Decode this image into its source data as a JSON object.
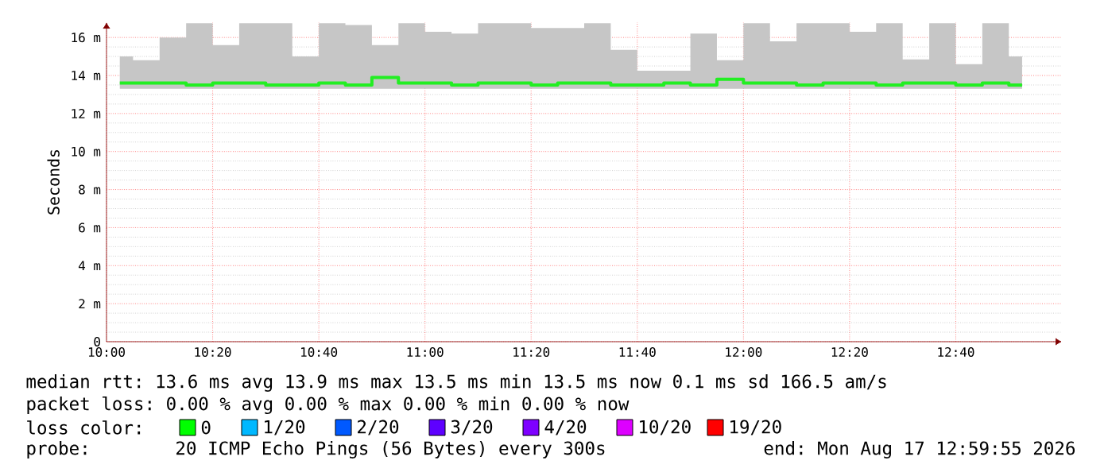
{
  "chart_data": {
    "type": "step",
    "ylabel": "Seconds",
    "x": [
      10.0417,
      10.125,
      10.2083,
      10.2917,
      10.375,
      10.4583,
      10.5417,
      10.625,
      10.7083,
      10.7917,
      10.875,
      10.9583,
      11.0417,
      11.125,
      11.2083,
      11.2917,
      11.375,
      11.4583,
      11.5417,
      11.625,
      11.7083,
      11.7917,
      11.875,
      11.9583,
      12.0417,
      12.125,
      12.2083,
      12.2917,
      12.375,
      12.4583,
      12.5417,
      12.625,
      12.7083,
      12.7917,
      12.875
    ],
    "series": [
      {
        "color": "#22ee22",
        "values": [
          13.6,
          13.6,
          13.6,
          13.5,
          13.6,
          13.6,
          13.5,
          13.5,
          13.6,
          13.5,
          13.9,
          13.6,
          13.6,
          13.5,
          13.6,
          13.6,
          13.5,
          13.6,
          13.6,
          13.5,
          13.5,
          13.6,
          13.5,
          13.8,
          13.6,
          13.6,
          13.5,
          13.6,
          13.6,
          13.5,
          13.6,
          13.6,
          13.5,
          13.6,
          13.5
        ],
        "lower": [
          13.3,
          13.3,
          13.3,
          13.3,
          13.3,
          13.3,
          13.3,
          13.3,
          13.3,
          13.3,
          13.3,
          13.3,
          13.3,
          13.3,
          13.3,
          13.3,
          13.3,
          13.3,
          13.3,
          13.3,
          13.3,
          13.3,
          13.3,
          13.3,
          13.3,
          13.3,
          13.3,
          13.3,
          13.3,
          13.3,
          13.3,
          13.3,
          13.3,
          13.3,
          13.3
        ],
        "upper": [
          15.0,
          14.8,
          16.0,
          16.75,
          15.6,
          16.75,
          16.75,
          15.0,
          16.75,
          16.65,
          15.6,
          16.75,
          16.3,
          16.2,
          16.75,
          16.75,
          16.5,
          16.5,
          16.75,
          15.35,
          14.25,
          14.25,
          16.2,
          14.8,
          16.75,
          15.8,
          16.75,
          16.75,
          16.3,
          16.75,
          14.85,
          16.75,
          14.6,
          16.75,
          15.0
        ]
      }
    ],
    "xlim": [
      10,
      13
    ],
    "ylim": [
      0,
      16.8
    ],
    "xticks": [
      {
        "value": 10,
        "label": "10:00"
      },
      {
        "value": 10.3333,
        "label": "10:20"
      },
      {
        "value": 10.6667,
        "label": "10:40"
      },
      {
        "value": 11,
        "label": "11:00"
      },
      {
        "value": 11.3333,
        "label": "11:20"
      },
      {
        "value": 11.6667,
        "label": "11:40"
      },
      {
        "value": 12,
        "label": "12:00"
      },
      {
        "value": 12.3333,
        "label": "12:20"
      },
      {
        "value": 12.6667,
        "label": "12:40"
      }
    ],
    "yticks": [
      0,
      {
        "value": 2,
        "label": "2 m"
      },
      {
        "value": 4,
        "label": "4 m"
      },
      {
        "value": 6,
        "label": "6 m"
      },
      {
        "value": 8,
        "label": "8 m"
      },
      {
        "value": 10,
        "label": "10 m"
      },
      {
        "value": 12,
        "label": "12 m"
      },
      {
        "value": 14,
        "label": "14 m"
      },
      {
        "value": 16,
        "label": "16 m"
      }
    ],
    "grid": true,
    "annotations": [
      "median rtt: 13.6 ms avg 13.9 ms max 13.5 ms min 13.5 ms now 0.1 ms sd 166.5 am/s",
      "packet loss: 0.00 % avg 0.00 % max 0.00 % min 0.00 % now",
      "loss color:",
      "0",
      "1/20",
      "2/20",
      "3/20",
      "4/20",
      "10/20",
      "19/20",
      "probe:",
      "20 ICMP Echo Pings (56 Bytes) every 300s",
      "end: Mon Aug 17 12:59:55 2026"
    ]
  }
}
